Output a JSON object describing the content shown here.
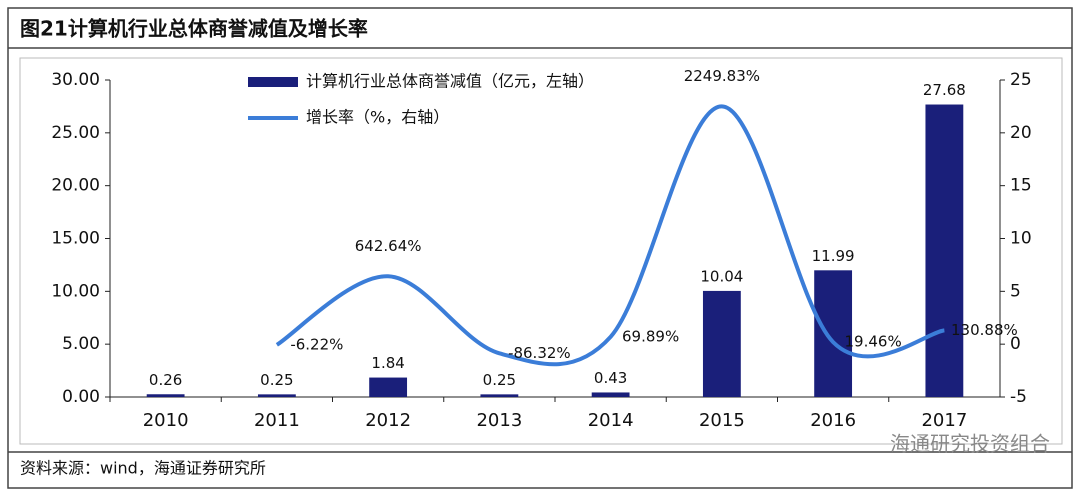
{
  "chart_data": {
    "type": "bar_line",
    "title": "图21计算机行业总体商誉减值及增长率",
    "source": "资料来源：wind，海通证券研究所",
    "watermark": "海通研究投资组合",
    "categories": [
      "2010",
      "2011",
      "2012",
      "2013",
      "2014",
      "2015",
      "2016",
      "2017"
    ],
    "series": [
      {
        "name": "计算机行业总体商誉减值（亿元，左轴）",
        "color": "#1a1f7a",
        "type": "bar",
        "values": [
          0.26,
          0.25,
          1.84,
          0.25,
          0.43,
          10.04,
          11.99,
          27.68
        ]
      },
      {
        "name": "增长率（%，右轴）",
        "color": "#3b7dd8",
        "type": "line",
        "axis": "y2",
        "values": [
          null,
          -0.0622,
          6.4264,
          -0.8632,
          0.6989,
          22.4983,
          0.1946,
          1.3088
        ],
        "value_labels": [
          null,
          "-6.22%",
          "642.64%",
          "-86.32%",
          "69.89%",
          "2249.83%",
          "19.46%",
          "130.88%"
        ]
      }
    ],
    "ylim": [
      0,
      30
    ],
    "yticks": [
      {
        "value": 0,
        "label": "0.00"
      },
      {
        "value": 5,
        "label": "5.00"
      },
      {
        "value": 10,
        "label": "10.00"
      },
      {
        "value": 15,
        "label": "15.00"
      },
      {
        "value": 20,
        "label": "20.00"
      },
      {
        "value": 25,
        "label": "25.00"
      },
      {
        "value": 30,
        "label": "30.00"
      }
    ],
    "y2lim": [
      -5,
      25
    ],
    "y2ticks": [
      -5,
      0,
      5,
      10,
      15,
      20,
      25
    ]
  }
}
